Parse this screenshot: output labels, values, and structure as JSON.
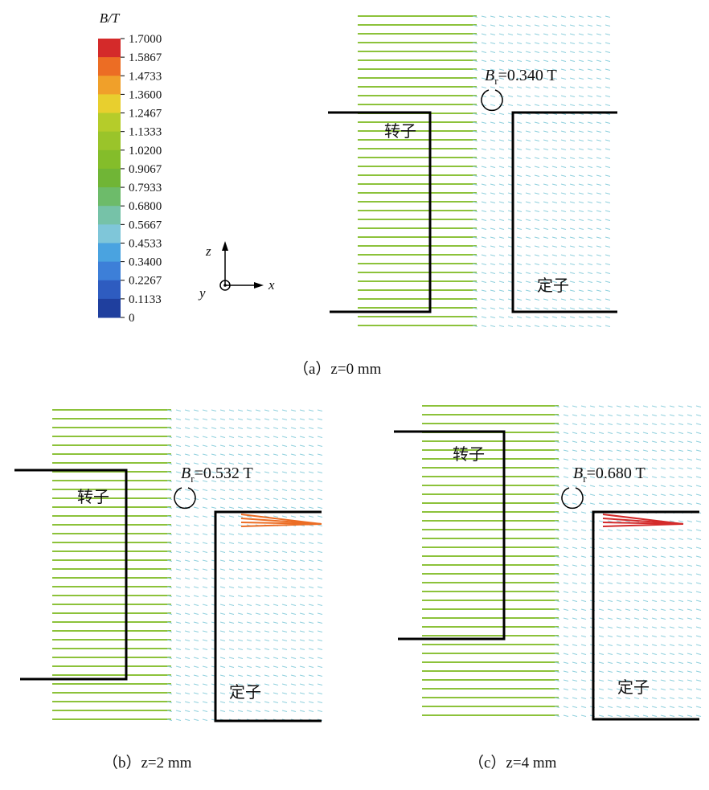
{
  "colorbar": {
    "title": "B/T",
    "ticks": [
      {
        "value": 1.7,
        "label": "1.7000"
      },
      {
        "value": 1.5867,
        "label": "1.5867"
      },
      {
        "value": 1.4733,
        "label": "1.4733"
      },
      {
        "value": 1.36,
        "label": "1.3600"
      },
      {
        "value": 1.2467,
        "label": "1.2467"
      },
      {
        "value": 1.1333,
        "label": "1.1333"
      },
      {
        "value": 1.02,
        "label": "1.0200"
      },
      {
        "value": 0.9067,
        "label": "0.9067"
      },
      {
        "value": 0.7933,
        "label": "0.7933"
      },
      {
        "value": 0.68,
        "label": "0.6800"
      },
      {
        "value": 0.5667,
        "label": "0.5667"
      },
      {
        "value": 0.4533,
        "label": "0.4533"
      },
      {
        "value": 0.34,
        "label": "0.3400"
      },
      {
        "value": 0.2267,
        "label": "0.2267"
      },
      {
        "value": 0.1133,
        "label": "0.1133"
      },
      0
    ],
    "colors": [
      "#d42a2a",
      "#ec6d24",
      "#f0a02a",
      "#e8cf2e",
      "#b5cc2a",
      "#9ac42a",
      "#84bd2a",
      "#70b536",
      "#6dbb6a",
      "#76c2a8",
      "#7fc6d9",
      "#4aa3e0",
      "#3d7fd8",
      "#2e5cc0",
      "#1f3f9e"
    ]
  },
  "axes": {
    "z": "z",
    "y": "y",
    "x": "x"
  },
  "panels": [
    {
      "caption": "（a）z=0 mm",
      "symbol": "B",
      "subscript": "r",
      "value_text": "=0.340 T",
      "rotor": "转子",
      "stator": "定子"
    },
    {
      "caption": "（b）z=2 mm",
      "symbol": "B",
      "subscript": "r",
      "value_text": "=0.532 T",
      "rotor": "转子",
      "stator": "定子"
    },
    {
      "caption": "（c）z=4 mm",
      "symbol": "B",
      "subscript": "r",
      "value_text": "=0.680 T",
      "rotor": "转子",
      "stator": "定子"
    }
  ]
}
